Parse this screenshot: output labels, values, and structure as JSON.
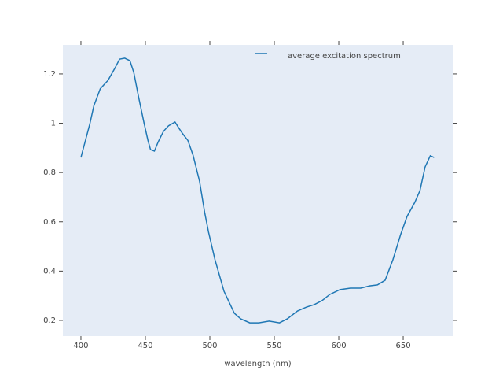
{
  "chart_data": {
    "type": "line",
    "x_label": "wavelength (nm)",
    "x": [
      400,
      407,
      410,
      415,
      421,
      426,
      430,
      434,
      438,
      441,
      445,
      449,
      452,
      454,
      457,
      460,
      464,
      468,
      473,
      476,
      479,
      483,
      487,
      492,
      496,
      499,
      504,
      511,
      519,
      524,
      531,
      538,
      546,
      554,
      560,
      568,
      575,
      581,
      587,
      593,
      601,
      609,
      617,
      624,
      630,
      636,
      642,
      648,
      653,
      659,
      663,
      667,
      671,
      674
    ],
    "series": [
      {
        "name": "average excitation spectrum",
        "color": "#1f77b4",
        "values": [
          0.861,
          0.999,
          1.07,
          1.14,
          1.174,
          1.22,
          1.26,
          1.264,
          1.254,
          1.206,
          1.1,
          1.0,
          0.93,
          0.893,
          0.887,
          0.925,
          0.967,
          0.99,
          1.005,
          0.98,
          0.957,
          0.93,
          0.87,
          0.765,
          0.638,
          0.558,
          0.446,
          0.318,
          0.229,
          0.206,
          0.19,
          0.19,
          0.197,
          0.19,
          0.206,
          0.238,
          0.254,
          0.264,
          0.28,
          0.305,
          0.325,
          0.331,
          0.331,
          0.34,
          0.344,
          0.363,
          0.446,
          0.548,
          0.622,
          0.679,
          0.727,
          0.823,
          0.868,
          0.861
        ]
      }
    ],
    "xlim": [
      386,
      689
    ],
    "xticks": [
      400,
      450,
      500,
      550,
      600,
      650
    ],
    "ylim": [
      0.136,
      1.318
    ],
    "yticks": [
      0.2,
      0.4,
      0.6,
      0.8,
      1,
      1.2
    ],
    "grid": false,
    "legend": "top",
    "plot_background": "#e5ecf6"
  }
}
